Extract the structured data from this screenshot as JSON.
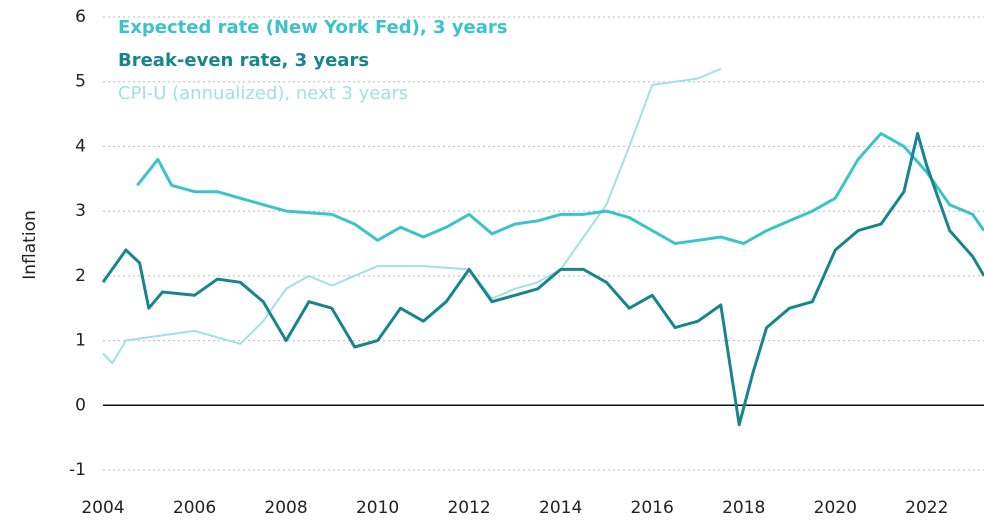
{
  "chart_data": {
    "type": "line",
    "y_label": "Inflation",
    "xlim": [
      2004,
      2023.25
    ],
    "xticks": [
      2004,
      2006,
      2008,
      2010,
      2012,
      2014,
      2016,
      2018,
      2020,
      2022
    ],
    "ylim": [
      -1,
      6
    ],
    "yticks": [
      -1,
      0,
      1,
      2,
      3,
      4,
      5,
      6
    ],
    "grid": true,
    "legend": "upper left",
    "series": [
      {
        "name": "Expected rate (New York Fed), 3 years",
        "color": "#3cc3c9",
        "x": [
          2004.75,
          2005.2,
          2005.5,
          2006,
          2006.5,
          2007,
          2007.5,
          2008,
          2009,
          2009.5,
          2010,
          2010.5,
          2011,
          2011.5,
          2012,
          2012.5,
          2013,
          2013.5,
          2014,
          2014.5,
          2015,
          2015.5,
          2016,
          2016.5,
          2017,
          2017.5,
          2018,
          2018.5,
          2019,
          2019.5,
          2020,
          2020.5,
          2021,
          2021.5,
          2022,
          2022.5,
          2023,
          2023.25
        ],
        "values": [
          3.4,
          3.8,
          3.4,
          3.3,
          3.3,
          3.2,
          3.1,
          3.0,
          2.95,
          2.8,
          2.55,
          2.75,
          2.6,
          2.75,
          2.95,
          2.65,
          2.8,
          2.85,
          2.95,
          2.95,
          3.0,
          2.9,
          2.7,
          2.5,
          2.55,
          2.6,
          2.5,
          2.7,
          2.85,
          3.0,
          3.2,
          3.8,
          4.2,
          4.0,
          3.6,
          3.1,
          2.95,
          2.7
        ]
      },
      {
        "name": "Break-even rate, 3 years",
        "color": "#17858b",
        "x": [
          2004,
          2004.5,
          2004.8,
          2005,
          2005.3,
          2006,
          2006.5,
          2007,
          2007.5,
          2008,
          2008.5,
          2009,
          2009.5,
          2010,
          2010.5,
          2011,
          2011.5,
          2012,
          2012.5,
          2013,
          2013.5,
          2014,
          2014.5,
          2015,
          2015.5,
          2016,
          2016.5,
          2017,
          2017.5,
          2017.9,
          2018.2,
          2018.5,
          2019,
          2019.5,
          2020,
          2020.5,
          2021,
          2021.5,
          2021.8,
          2022,
          2022.5,
          2023,
          2023.25
        ],
        "values": [
          1.9,
          2.4,
          2.2,
          1.5,
          1.75,
          1.7,
          1.95,
          1.9,
          1.6,
          1.0,
          1.6,
          1.5,
          0.9,
          1.0,
          1.5,
          1.3,
          1.6,
          2.1,
          1.6,
          1.7,
          1.8,
          2.1,
          2.1,
          1.9,
          1.5,
          1.7,
          1.2,
          1.3,
          1.55,
          -0.3,
          0.5,
          1.2,
          1.5,
          1.6,
          2.4,
          2.7,
          2.8,
          3.3,
          4.2,
          3.7,
          2.7,
          2.3,
          2.0
        ]
      },
      {
        "name": "CPI-U (annualized), next 3 years",
        "color": "#a2e0e3",
        "x": [
          2004,
          2004.2,
          2004.5,
          2005,
          2006,
          2007,
          2007.5,
          2008,
          2008.5,
          2009,
          2010,
          2011,
          2012,
          2012.5,
          2013,
          2013.5,
          2014,
          2014.5,
          2015,
          2015.5,
          2016,
          2016.5,
          2017,
          2017.5
        ],
        "values": [
          0.8,
          0.65,
          1.0,
          1.05,
          1.15,
          0.95,
          1.3,
          1.8,
          2.0,
          1.85,
          2.15,
          2.15,
          2.1,
          1.65,
          1.8,
          1.9,
          2.1,
          2.6,
          3.1,
          4.0,
          4.95,
          5.0,
          5.05,
          5.2
        ]
      }
    ]
  }
}
